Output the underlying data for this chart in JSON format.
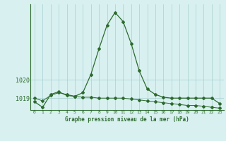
{
  "hours": [
    0,
    1,
    2,
    3,
    4,
    5,
    6,
    7,
    8,
    9,
    10,
    11,
    12,
    13,
    14,
    15,
    16,
    17,
    18,
    19,
    20,
    21,
    22,
    23
  ],
  "pressure_main": [
    1018.8,
    1018.5,
    1019.2,
    1019.35,
    1019.15,
    1019.1,
    1019.3,
    1020.3,
    1021.7,
    1023.0,
    1023.7,
    1023.2,
    1022.0,
    1020.5,
    1019.5,
    1019.2,
    1019.05,
    1019.0,
    1019.0,
    1019.0,
    1019.0,
    1019.0,
    1019.0,
    1018.7
  ],
  "pressure_trend": [
    1019.0,
    1018.85,
    1019.15,
    1019.3,
    1019.2,
    1019.1,
    1019.05,
    1019.05,
    1019.0,
    1019.0,
    1019.0,
    1019.0,
    1018.95,
    1018.9,
    1018.85,
    1018.8,
    1018.75,
    1018.7,
    1018.65,
    1018.6,
    1018.6,
    1018.55,
    1018.5,
    1018.45
  ],
  "line_color": "#2d6a2d",
  "bg_color": "#d8f0f0",
  "grid_color": "#a8d0d0",
  "xlabel": "Graphe pression niveau de la mer (hPa)",
  "ylim_min": 1018.35,
  "ylim_max": 1024.15,
  "yticks": [
    1019,
    1020
  ],
  "marker": "D",
  "markersize": 2.0
}
